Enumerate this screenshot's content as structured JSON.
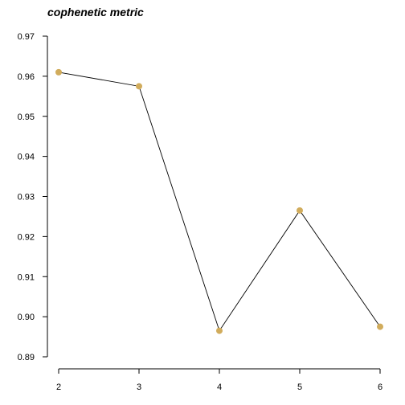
{
  "chart_data": {
    "type": "line",
    "title": "cophenetic metric",
    "xlabel": "",
    "ylabel": "",
    "x": [
      2,
      3,
      4,
      5,
      6
    ],
    "xticks": [
      "2",
      "3",
      "4",
      "5",
      "6"
    ],
    "xlim": [
      2,
      6
    ],
    "ylim": [
      0.89,
      0.97
    ],
    "yticks": [
      "0.89",
      "0.90",
      "0.91",
      "0.92",
      "0.93",
      "0.94",
      "0.95",
      "0.96",
      "0.97"
    ],
    "series": [
      {
        "values": [
          0.961,
          0.9575,
          0.8965,
          0.9265,
          0.8975
        ]
      }
    ],
    "grid": false,
    "legend": "none",
    "colors": {
      "point": "#d1ac5c",
      "line": "#000000"
    }
  }
}
